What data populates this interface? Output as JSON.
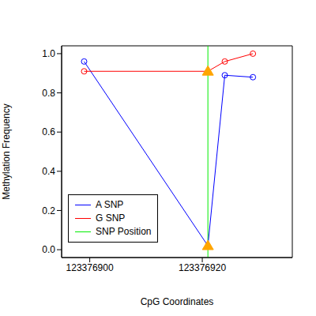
{
  "chart_data": {
    "type": "line",
    "x_label": "CpG Coordinates",
    "y_label": "Methylation Frequency",
    "x": [
      123376899,
      123376921,
      123376924,
      123376929
    ],
    "xlim": [
      123376895,
      123376936
    ],
    "xticks": [
      123376900,
      123376920
    ],
    "ylim": [
      -0.04,
      1.04
    ],
    "yticks": [
      {
        "value": 0,
        "label": "0.0"
      },
      0.2,
      0.4,
      0.6,
      0.8,
      {
        "value": 1,
        "label": "1.0"
      }
    ],
    "legend": "lower left",
    "series": [
      {
        "name": "A SNP",
        "color": "#0000ff",
        "marker": "circle",
        "values": [
          0.96,
          0.02,
          0.89,
          0.88
        ]
      },
      {
        "name": "G SNP",
        "color": "#ff0000",
        "marker": "circle",
        "values": [
          0.91,
          0.91,
          0.96,
          1.0
        ]
      }
    ],
    "snp": {
      "name": "SNP Position",
      "x": 123376921,
      "color": "#00ee00",
      "marker": "triangle"
    }
  }
}
